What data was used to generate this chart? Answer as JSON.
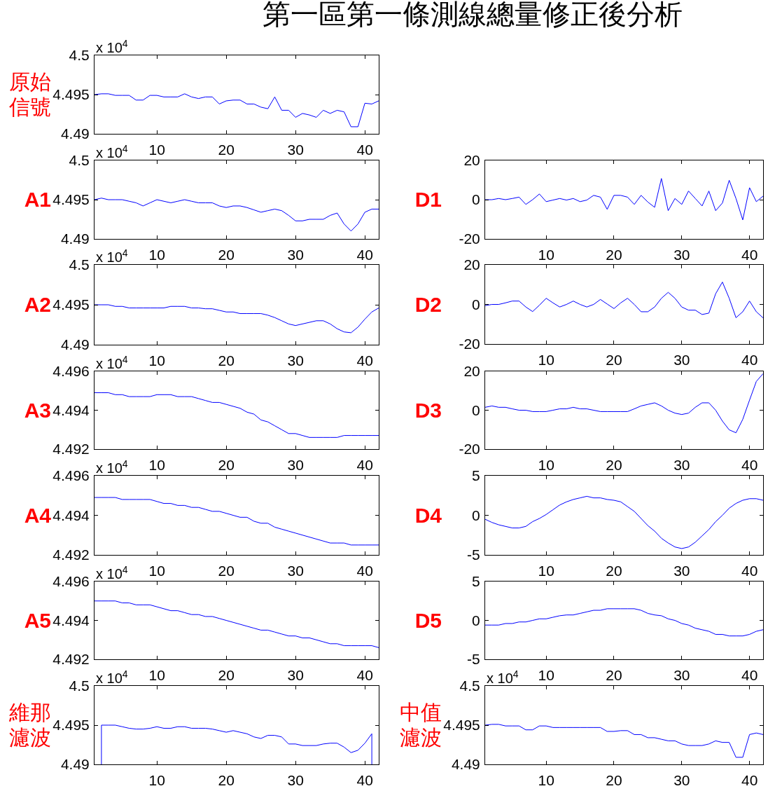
{
  "chart_data": [
    {
      "type": "line",
      "title": "第一區第一條測線總量修正後分析",
      "ylabel": "原始信號",
      "annotations": [
        "x 10$^{4}$"
      ],
      "color": "#0000ff",
      "xlim": [
        1,
        42
      ],
      "xticks": [
        10,
        20,
        30,
        40
      ],
      "ylim": [
        4.49,
        4.5
      ],
      "yticks": [
        4.49,
        4.495,
        4.5
      ],
      "x": [
        1,
        2,
        3,
        4,
        5,
        6,
        7,
        8,
        9,
        10,
        11,
        12,
        13,
        14,
        15,
        16,
        17,
        18,
        19,
        20,
        21,
        22,
        23,
        24,
        25,
        26,
        27,
        28,
        29,
        30,
        31,
        32,
        33,
        34,
        35,
        36,
        37,
        38,
        39,
        40,
        41,
        42
      ],
      "values": [
        4.495,
        4.4951,
        4.4951,
        4.4949,
        4.4949,
        4.4949,
        4.4943,
        4.4943,
        4.4949,
        4.4949,
        4.4947,
        4.4947,
        4.4947,
        4.4951,
        4.4947,
        4.4945,
        4.4947,
        4.4947,
        4.4938,
        4.4942,
        4.4943,
        4.4943,
        4.4938,
        4.4938,
        4.4934,
        4.4932,
        4.4947,
        4.493,
        4.493,
        4.4921,
        4.4926,
        4.4924,
        4.4921,
        4.493,
        4.4926,
        4.493,
        4.4928,
        4.4909,
        4.4909,
        4.4939,
        4.4938,
        4.4942
      ]
    },
    {
      "type": "line",
      "ylabel": "A1",
      "annotations": [
        "x 10$^{4}$"
      ],
      "color": "#0000ff",
      "xlim": [
        1,
        42
      ],
      "xticks": [
        10,
        20,
        30,
        40
      ],
      "ylim": [
        4.49,
        4.5
      ],
      "yticks": [
        4.49,
        4.495,
        4.5
      ],
      "x": [
        1,
        2,
        3,
        4,
        5,
        6,
        7,
        8,
        9,
        10,
        11,
        12,
        13,
        14,
        15,
        16,
        17,
        18,
        19,
        20,
        21,
        22,
        23,
        24,
        25,
        26,
        27,
        28,
        29,
        30,
        31,
        32,
        33,
        34,
        35,
        36,
        37,
        38,
        39,
        40,
        41,
        42
      ],
      "values": [
        4.495,
        4.4952,
        4.495,
        4.495,
        4.495,
        4.4948,
        4.4946,
        4.4942,
        4.4946,
        4.495,
        4.4948,
        4.4946,
        4.4948,
        4.495,
        4.4948,
        4.4946,
        4.4946,
        4.4946,
        4.4942,
        4.494,
        4.4942,
        4.4942,
        4.494,
        4.4937,
        4.4934,
        4.4936,
        4.4938,
        4.4936,
        4.493,
        4.4923,
        4.4923,
        4.4925,
        4.4925,
        4.4925,
        4.493,
        4.4933,
        4.4919,
        4.491,
        4.4919,
        4.4934,
        4.4938,
        4.4938
      ]
    },
    {
      "type": "line",
      "ylabel": "D1",
      "color": "#0000ff",
      "xlim": [
        1,
        42
      ],
      "xticks": [
        10,
        20,
        30,
        40
      ],
      "ylim": [
        -20,
        20
      ],
      "yticks": [
        -20,
        0,
        20
      ],
      "x": [
        1,
        2,
        3,
        4,
        5,
        6,
        7,
        8,
        9,
        10,
        11,
        12,
        13,
        14,
        15,
        16,
        17,
        18,
        19,
        20,
        21,
        22,
        23,
        24,
        25,
        26,
        27,
        28,
        29,
        30,
        31,
        32,
        33,
        34,
        35,
        36,
        37,
        38,
        39,
        40,
        41,
        42
      ],
      "values": [
        0,
        0,
        0.6,
        0,
        0.6,
        1.3,
        -2.4,
        0,
        2.9,
        -1,
        -0.2,
        0.6,
        -0.2,
        0.6,
        -1,
        -0.2,
        2.2,
        1.3,
        -4.9,
        2.2,
        2.2,
        1.3,
        -2.4,
        2.2,
        -1.2,
        -3.9,
        10.8,
        -5.6,
        0.6,
        -2.4,
        4.4,
        0.6,
        -3.2,
        4.4,
        -5.6,
        -1.7,
        9.9,
        0.6,
        -10.3,
        6.1,
        -1,
        1.8
      ]
    },
    {
      "type": "line",
      "ylabel": "A2",
      "annotations": [
        "x 10$^{4}$"
      ],
      "color": "#0000ff",
      "xlim": [
        1,
        42
      ],
      "xticks": [
        10,
        20,
        30,
        40
      ],
      "ylim": [
        4.49,
        4.5
      ],
      "yticks": [
        4.49,
        4.495,
        4.5
      ],
      "x": [
        1,
        2,
        3,
        4,
        5,
        6,
        7,
        8,
        9,
        10,
        11,
        12,
        13,
        14,
        15,
        16,
        17,
        18,
        19,
        20,
        21,
        22,
        23,
        24,
        25,
        26,
        27,
        28,
        29,
        30,
        31,
        32,
        33,
        34,
        35,
        36,
        37,
        38,
        39,
        40,
        41,
        42
      ],
      "values": [
        4.495,
        4.495,
        4.495,
        4.4948,
        4.4948,
        4.4946,
        4.4946,
        4.4946,
        4.4946,
        4.4946,
        4.4946,
        4.4948,
        4.4948,
        4.4948,
        4.4946,
        4.4946,
        4.4945,
        4.4945,
        4.4943,
        4.4941,
        4.4941,
        4.4939,
        4.4939,
        4.4939,
        4.4939,
        4.4937,
        4.4934,
        4.493,
        4.4926,
        4.4924,
        4.4926,
        4.4928,
        4.493,
        4.493,
        4.4926,
        4.492,
        4.4916,
        4.4915,
        4.4922,
        4.4932,
        4.4941,
        4.4946
      ]
    },
    {
      "type": "line",
      "ylabel": "D2",
      "color": "#0000ff",
      "xlim": [
        1,
        42
      ],
      "xticks": [
        10,
        20,
        30,
        40
      ],
      "ylim": [
        -20,
        20
      ],
      "yticks": [
        -20,
        0,
        20
      ],
      "x": [
        1,
        2,
        3,
        4,
        5,
        6,
        7,
        8,
        9,
        10,
        11,
        12,
        13,
        14,
        15,
        16,
        17,
        18,
        19,
        20,
        21,
        22,
        23,
        24,
        25,
        26,
        27,
        28,
        29,
        30,
        31,
        32,
        33,
        34,
        35,
        36,
        37,
        38,
        39,
        40,
        41,
        42
      ],
      "values": [
        -0.6,
        0,
        0,
        0.8,
        1.7,
        1.7,
        -1.3,
        -3.6,
        -0.4,
        3.1,
        0.8,
        -1.3,
        0,
        1.7,
        0,
        -1.3,
        0,
        2.5,
        0.2,
        -2.1,
        0.8,
        3.1,
        0,
        -3.7,
        -3.7,
        -1.3,
        3.1,
        6.1,
        3.1,
        -1.3,
        -2.9,
        -2.9,
        -5.1,
        -4.4,
        5.4,
        11.3,
        3.1,
        -6.7,
        -3.7,
        1.7,
        -3.7,
        -6.8
      ]
    },
    {
      "type": "line",
      "ylabel": "A3",
      "annotations": [
        "x 10$^{4}$"
      ],
      "color": "#0000ff",
      "xlim": [
        1,
        42
      ],
      "xticks": [
        10,
        20,
        30,
        40
      ],
      "ylim": [
        4.492,
        4.496
      ],
      "yticks": [
        4.492,
        4.494,
        4.496
      ],
      "x": [
        1,
        2,
        3,
        4,
        5,
        6,
        7,
        8,
        9,
        10,
        11,
        12,
        13,
        14,
        15,
        16,
        17,
        18,
        19,
        20,
        21,
        22,
        23,
        24,
        25,
        26,
        27,
        28,
        29,
        30,
        31,
        32,
        33,
        34,
        35,
        36,
        37,
        38,
        39,
        40,
        41,
        42
      ],
      "values": [
        4.4949,
        4.4949,
        4.4949,
        4.4948,
        4.4948,
        4.4947,
        4.4947,
        4.4947,
        4.4947,
        4.4948,
        4.4948,
        4.4948,
        4.4947,
        4.4947,
        4.4947,
        4.4946,
        4.4945,
        4.4944,
        4.4944,
        4.4943,
        4.4942,
        4.4941,
        4.4939,
        4.4938,
        4.4935,
        4.4934,
        4.4932,
        4.493,
        4.4928,
        4.4928,
        4.4927,
        4.4926,
        4.4926,
        4.4926,
        4.4926,
        4.4926,
        4.4927,
        4.4927,
        4.4927,
        4.4927,
        4.4927,
        4.4927
      ]
    },
    {
      "type": "line",
      "ylabel": "D3",
      "color": "#0000ff",
      "xlim": [
        1,
        42
      ],
      "xticks": [
        10,
        20,
        30,
        40
      ],
      "ylim": [
        -20,
        20
      ],
      "yticks": [
        -20,
        0,
        20
      ],
      "x": [
        1,
        2,
        3,
        4,
        5,
        6,
        7,
        8,
        9,
        10,
        11,
        12,
        13,
        14,
        15,
        16,
        17,
        18,
        19,
        20,
        21,
        22,
        23,
        24,
        25,
        26,
        27,
        28,
        29,
        30,
        31,
        32,
        33,
        34,
        35,
        36,
        37,
        38,
        39,
        40,
        41,
        42
      ],
      "values": [
        1.5,
        2.2,
        1.5,
        1.5,
        0.7,
        0,
        0,
        -0.7,
        -0.7,
        -0.7,
        0,
        0.7,
        0.7,
        1.5,
        0.7,
        0.7,
        0,
        -0.7,
        -0.7,
        -0.7,
        -0.7,
        -0.7,
        0.7,
        2.2,
        3,
        3.8,
        2.2,
        0,
        -1.5,
        -2.2,
        -1.5,
        1.5,
        3.8,
        3.8,
        0,
        -5.6,
        -10.1,
        -11.6,
        -4.7,
        5.2,
        14.8,
        18.8
      ]
    },
    {
      "type": "line",
      "ylabel": "A4",
      "annotations": [
        "x 10$^{4}$"
      ],
      "color": "#0000ff",
      "xlim": [
        1,
        42
      ],
      "xticks": [
        10,
        20,
        30,
        40
      ],
      "ylim": [
        4.492,
        4.496
      ],
      "yticks": [
        4.492,
        4.494,
        4.496
      ],
      "x": [
        1,
        2,
        3,
        4,
        5,
        6,
        7,
        8,
        9,
        10,
        11,
        12,
        13,
        14,
        15,
        16,
        17,
        18,
        19,
        20,
        21,
        22,
        23,
        24,
        25,
        26,
        27,
        28,
        29,
        30,
        31,
        32,
        33,
        34,
        35,
        36,
        37,
        38,
        39,
        40,
        41,
        42
      ],
      "values": [
        4.4949,
        4.4949,
        4.4949,
        4.4949,
        4.4948,
        4.4948,
        4.4948,
        4.4948,
        4.4948,
        4.4947,
        4.4946,
        4.4946,
        4.4945,
        4.4945,
        4.4944,
        4.4944,
        4.4943,
        4.4942,
        4.4942,
        4.4941,
        4.494,
        4.4939,
        4.4939,
        4.4937,
        4.4936,
        4.4936,
        4.4934,
        4.4933,
        4.4932,
        4.4931,
        4.493,
        4.4929,
        4.4928,
        4.4927,
        4.4926,
        4.4926,
        4.4926,
        4.4925,
        4.4925,
        4.4925,
        4.4925,
        4.4925
      ]
    },
    {
      "type": "line",
      "ylabel": "D4",
      "color": "#0000ff",
      "xlim": [
        1,
        42
      ],
      "xticks": [
        10,
        20,
        30,
        40
      ],
      "ylim": [
        -5,
        5
      ],
      "yticks": [
        -5,
        0,
        5
      ],
      "x": [
        1,
        2,
        3,
        4,
        5,
        6,
        7,
        8,
        9,
        10,
        11,
        12,
        13,
        14,
        15,
        16,
        17,
        18,
        19,
        20,
        21,
        22,
        23,
        24,
        25,
        26,
        27,
        28,
        29,
        30,
        31,
        32,
        33,
        34,
        35,
        36,
        37,
        38,
        39,
        40,
        41,
        42
      ],
      "values": [
        -0.5,
        -0.9,
        -1.2,
        -1.4,
        -1.6,
        -1.6,
        -1.4,
        -0.8,
        -0.4,
        0.1,
        0.7,
        1.3,
        1.7,
        2,
        2.2,
        2.4,
        2.2,
        2.2,
        2,
        1.9,
        1.7,
        1.1,
        0.5,
        -0.4,
        -1.3,
        -2,
        -2.9,
        -3.5,
        -4,
        -4.2,
        -4,
        -3.4,
        -2.6,
        -1.8,
        -0.8,
        0,
        0.9,
        1.5,
        1.9,
        2.1,
        2.1,
        1.9
      ]
    },
    {
      "type": "line",
      "ylabel": "A5",
      "annotations": [
        "x 10$^{4}$"
      ],
      "color": "#0000ff",
      "xlim": [
        1,
        42
      ],
      "xticks": [
        10,
        20,
        30,
        40
      ],
      "ylim": [
        4.492,
        4.496
      ],
      "yticks": [
        4.492,
        4.494,
        4.496
      ],
      "x": [
        1,
        2,
        3,
        4,
        5,
        6,
        7,
        8,
        9,
        10,
        11,
        12,
        13,
        14,
        15,
        16,
        17,
        18,
        19,
        20,
        21,
        22,
        23,
        24,
        25,
        26,
        27,
        28,
        29,
        30,
        31,
        32,
        33,
        34,
        35,
        36,
        37,
        38,
        39,
        40,
        41,
        42
      ],
      "values": [
        4.495,
        4.495,
        4.495,
        4.495,
        4.4949,
        4.4949,
        4.4948,
        4.4948,
        4.4948,
        4.4947,
        4.4946,
        4.4945,
        4.4945,
        4.4944,
        4.4943,
        4.4943,
        4.4942,
        4.4942,
        4.4941,
        4.494,
        4.4939,
        4.4938,
        4.4937,
        4.4936,
        4.4935,
        4.4935,
        4.4934,
        4.4933,
        4.4932,
        4.4932,
        4.4931,
        4.4931,
        4.493,
        4.4929,
        4.4928,
        4.4928,
        4.4927,
        4.4927,
        4.4927,
        4.4927,
        4.4927,
        4.4926
      ]
    },
    {
      "type": "line",
      "ylabel": "D5",
      "color": "#0000ff",
      "xlim": [
        1,
        42
      ],
      "xticks": [
        10,
        20,
        30,
        40
      ],
      "ylim": [
        -5,
        5
      ],
      "yticks": [
        -5,
        0,
        5
      ],
      "x": [
        1,
        2,
        3,
        4,
        5,
        6,
        7,
        8,
        9,
        10,
        11,
        12,
        13,
        14,
        15,
        16,
        17,
        18,
        19,
        20,
        21,
        22,
        23,
        24,
        25,
        26,
        27,
        28,
        29,
        30,
        31,
        32,
        33,
        34,
        35,
        36,
        37,
        38,
        39,
        40,
        41,
        42
      ],
      "values": [
        -0.6,
        -0.6,
        -0.6,
        -0.4,
        -0.4,
        -0.2,
        -0.2,
        0,
        0.2,
        0.2,
        0.4,
        0.6,
        0.7,
        0.7,
        0.9,
        1.1,
        1.3,
        1.3,
        1.5,
        1.5,
        1.5,
        1.5,
        1.5,
        1.3,
        0.9,
        0.7,
        0.6,
        0.2,
        0,
        -0.4,
        -0.6,
        -1,
        -1.2,
        -1.4,
        -1.8,
        -1.8,
        -2,
        -2,
        -2,
        -1.8,
        -1.4,
        -1.2
      ]
    },
    {
      "type": "line",
      "ylabel": "維那濾波",
      "annotations": [
        "x 10$^{4}$"
      ],
      "color": "#0000ff",
      "xlim": [
        1,
        42
      ],
      "xticks": [
        10,
        20,
        30,
        40
      ],
      "ylim": [
        4.49,
        4.5
      ],
      "yticks": [
        4.49,
        4.495,
        4.5
      ],
      "x": [
        2,
        2,
        3,
        4,
        5,
        6,
        7,
        8,
        9,
        10,
        11,
        12,
        13,
        14,
        15,
        16,
        17,
        18,
        19,
        20,
        21,
        22,
        23,
        24,
        25,
        26,
        27,
        28,
        29,
        30,
        31,
        32,
        33,
        34,
        35,
        36,
        37,
        38,
        39,
        40,
        41,
        41
      ],
      "values": [
        4.49,
        4.495,
        4.495,
        4.495,
        4.4948,
        4.4946,
        4.4945,
        4.4945,
        4.4946,
        4.4948,
        4.4946,
        4.4946,
        4.4948,
        4.4948,
        4.4946,
        4.4946,
        4.4946,
        4.4945,
        4.4943,
        4.4941,
        4.4943,
        4.4941,
        4.4939,
        4.4935,
        4.4933,
        4.4937,
        4.4937,
        4.4935,
        4.4926,
        4.4926,
        4.4924,
        4.4924,
        4.4924,
        4.4926,
        4.4927,
        4.4927,
        4.4922,
        4.4915,
        4.4918,
        4.4927,
        4.4939,
        4.49
      ]
    },
    {
      "type": "line",
      "ylabel": "中值濾波",
      "annotations": [
        "x 10$^{4}$"
      ],
      "color": "#0000ff",
      "xlim": [
        1,
        42
      ],
      "xticks": [
        10,
        20,
        30,
        40
      ],
      "ylim": [
        4.49,
        4.5
      ],
      "yticks": [
        4.49,
        4.495,
        4.5
      ],
      "x": [
        1,
        2,
        3,
        4,
        5,
        6,
        7,
        8,
        9,
        10,
        11,
        12,
        13,
        14,
        15,
        16,
        17,
        18,
        19,
        20,
        21,
        22,
        23,
        24,
        25,
        26,
        27,
        28,
        29,
        30,
        31,
        32,
        33,
        34,
        35,
        36,
        37,
        38,
        39,
        40,
        41,
        42
      ],
      "values": [
        4.495,
        4.4951,
        4.4951,
        4.4949,
        4.4949,
        4.4949,
        4.4944,
        4.4944,
        4.4949,
        4.4949,
        4.4947,
        4.4947,
        4.4947,
        4.4947,
        4.4947,
        4.4947,
        4.4947,
        4.4947,
        4.4942,
        4.4942,
        4.4943,
        4.4943,
        4.4938,
        4.4938,
        4.4934,
        4.4934,
        4.4932,
        4.493,
        4.493,
        4.4926,
        4.4924,
        4.4924,
        4.4924,
        4.4926,
        4.493,
        4.4928,
        4.4928,
        4.4909,
        4.4909,
        4.4938,
        4.494,
        4.4938
      ]
    }
  ]
}
